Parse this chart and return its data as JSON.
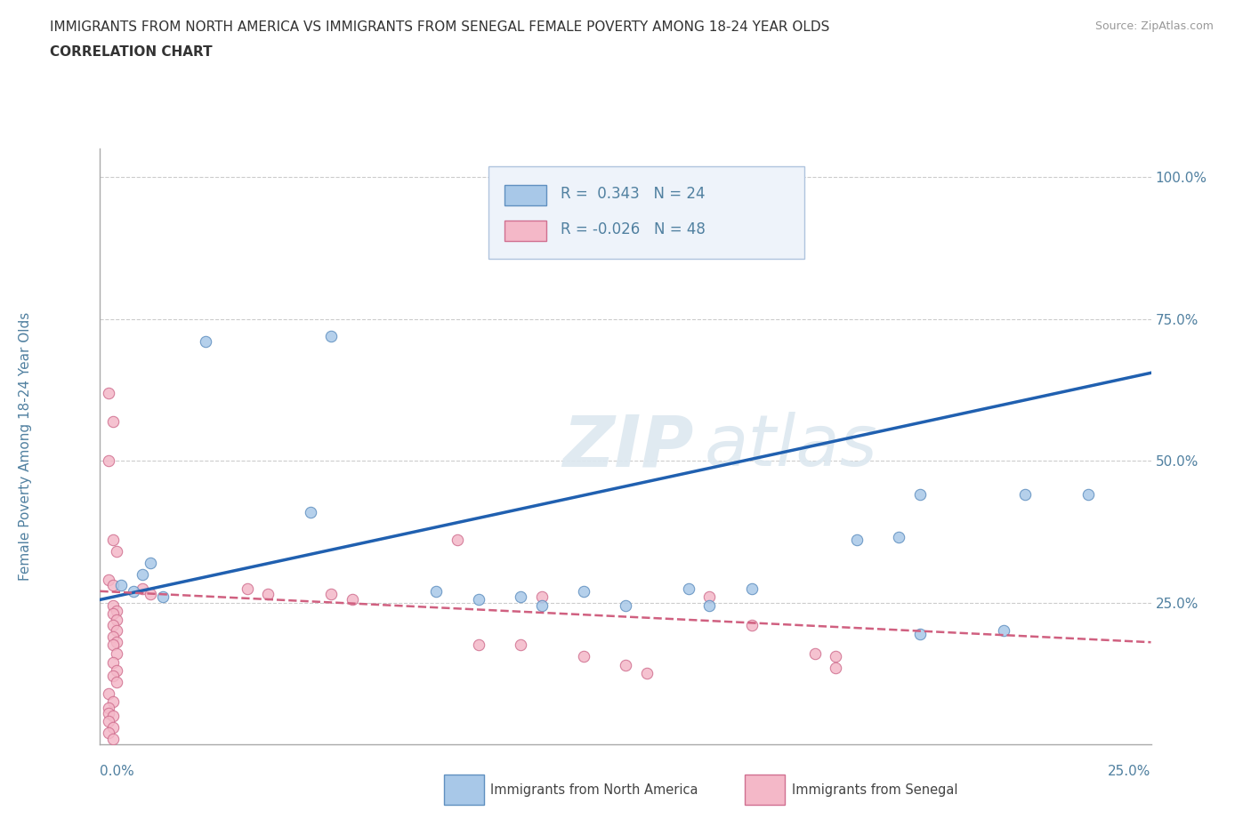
{
  "title": "IMMIGRANTS FROM NORTH AMERICA VS IMMIGRANTS FROM SENEGAL FEMALE POVERTY AMONG 18-24 YEAR OLDS",
  "subtitle": "CORRELATION CHART",
  "source": "Source: ZipAtlas.com",
  "xlabel_bottom_left": "0.0%",
  "xlabel_bottom_right": "25.0%",
  "ylabel": "Female Poverty Among 18-24 Year Olds",
  "xmin": 0.0,
  "xmax": 0.25,
  "ymin": 0.0,
  "ymax": 1.05,
  "yticks": [
    0.25,
    0.5,
    0.75,
    1.0
  ],
  "ytick_labels": [
    "25.0%",
    "50.0%",
    "75.0%",
    "100.0%"
  ],
  "watermark_zip": "ZIP",
  "watermark_atlas": "atlas",
  "blue_R": 0.343,
  "blue_N": 24,
  "pink_R": -0.026,
  "pink_N": 48,
  "blue_color": "#a8c8e8",
  "pink_color": "#f4b8c8",
  "blue_edge_color": "#6090c0",
  "pink_edge_color": "#d07090",
  "blue_line_color": "#2060b0",
  "pink_line_color": "#d06080",
  "legend_label_blue": "Immigrants from North America",
  "legend_label_pink": "Immigrants from Senegal",
  "blue_scatter": [
    [
      0.005,
      0.28
    ],
    [
      0.008,
      0.27
    ],
    [
      0.01,
      0.3
    ],
    [
      0.012,
      0.32
    ],
    [
      0.015,
      0.26
    ],
    [
      0.025,
      0.71
    ],
    [
      0.055,
      0.72
    ],
    [
      0.05,
      0.41
    ],
    [
      0.08,
      0.27
    ],
    [
      0.09,
      0.255
    ],
    [
      0.1,
      0.26
    ],
    [
      0.105,
      0.245
    ],
    [
      0.115,
      0.27
    ],
    [
      0.125,
      0.245
    ],
    [
      0.14,
      0.275
    ],
    [
      0.145,
      0.245
    ],
    [
      0.155,
      0.275
    ],
    [
      0.18,
      0.36
    ],
    [
      0.19,
      0.365
    ],
    [
      0.195,
      0.44
    ],
    [
      0.215,
      0.2
    ],
    [
      0.22,
      0.44
    ],
    [
      0.195,
      0.195
    ],
    [
      0.235,
      0.44
    ]
  ],
  "pink_scatter": [
    [
      0.002,
      0.62
    ],
    [
      0.003,
      0.57
    ],
    [
      0.002,
      0.5
    ],
    [
      0.003,
      0.36
    ],
    [
      0.004,
      0.34
    ],
    [
      0.002,
      0.29
    ],
    [
      0.003,
      0.28
    ],
    [
      0.003,
      0.245
    ],
    [
      0.004,
      0.235
    ],
    [
      0.003,
      0.23
    ],
    [
      0.004,
      0.22
    ],
    [
      0.003,
      0.21
    ],
    [
      0.004,
      0.2
    ],
    [
      0.003,
      0.19
    ],
    [
      0.004,
      0.18
    ],
    [
      0.003,
      0.175
    ],
    [
      0.004,
      0.16
    ],
    [
      0.003,
      0.145
    ],
    [
      0.004,
      0.13
    ],
    [
      0.003,
      0.12
    ],
    [
      0.004,
      0.11
    ],
    [
      0.002,
      0.09
    ],
    [
      0.003,
      0.075
    ],
    [
      0.002,
      0.065
    ],
    [
      0.002,
      0.055
    ],
    [
      0.003,
      0.05
    ],
    [
      0.002,
      0.04
    ],
    [
      0.003,
      0.03
    ],
    [
      0.002,
      0.02
    ],
    [
      0.003,
      0.01
    ],
    [
      0.01,
      0.275
    ],
    [
      0.012,
      0.265
    ],
    [
      0.035,
      0.275
    ],
    [
      0.04,
      0.265
    ],
    [
      0.055,
      0.265
    ],
    [
      0.06,
      0.255
    ],
    [
      0.085,
      0.36
    ],
    [
      0.105,
      0.26
    ],
    [
      0.145,
      0.26
    ],
    [
      0.155,
      0.21
    ],
    [
      0.17,
      0.16
    ],
    [
      0.175,
      0.155
    ],
    [
      0.175,
      0.135
    ],
    [
      0.09,
      0.175
    ],
    [
      0.1,
      0.175
    ],
    [
      0.115,
      0.155
    ],
    [
      0.125,
      0.14
    ],
    [
      0.13,
      0.125
    ]
  ],
  "background_color": "#ffffff",
  "grid_color": "#cccccc",
  "title_color": "#333333",
  "axis_color": "#5080a0",
  "tick_fontsize": 11
}
